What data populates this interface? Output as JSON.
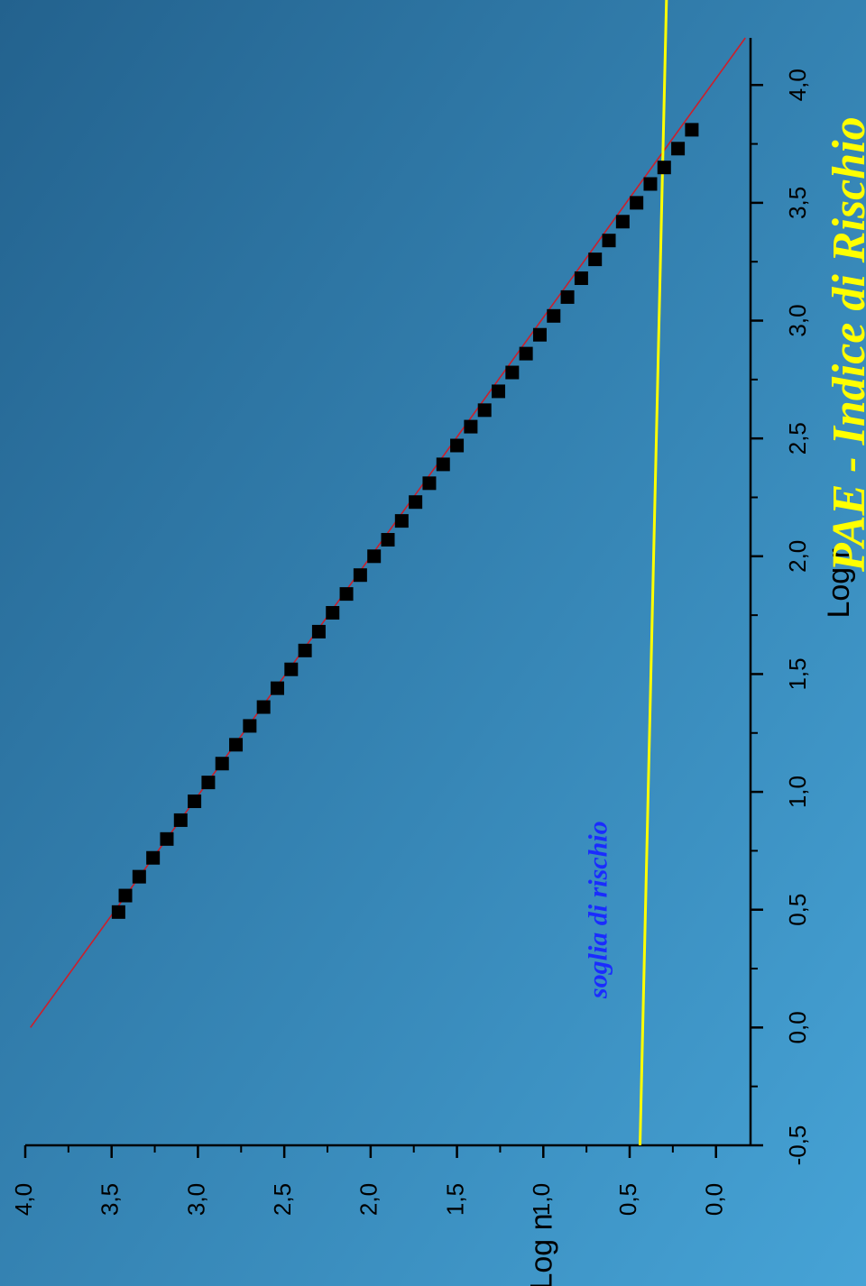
{
  "colors": {
    "background_start": "#23628e",
    "background_end": "#46a3d6",
    "title": "#ffff00",
    "annotation": "#1a2cff",
    "threshold_line": "#ffff00",
    "fit_line": "#cc1f2b",
    "markers": "#000000",
    "axis": "#000000"
  },
  "chart_data": {
    "type": "scatter",
    "orientation": "rotated 90 degrees clockwise",
    "title": "PAE - Indice di Rischio",
    "xlabel": "Log r",
    "ylabel": "Log n",
    "xlim": [
      -0.5,
      4.2
    ],
    "ylim": [
      -0.2,
      4.0
    ],
    "x_ticks": [
      "-0,5",
      "0,0",
      "0,5",
      "1,0",
      "1,5",
      "2,0",
      "2,5",
      "3,0",
      "3,5",
      "4,0"
    ],
    "x_tick_values": [
      -0.5,
      0.0,
      0.5,
      1.0,
      1.5,
      2.0,
      2.5,
      3.0,
      3.5,
      4.0
    ],
    "y_ticks": [
      "4,0",
      "3,5",
      "3,0",
      "2,5",
      "2,0",
      "1,5",
      "1,0",
      "0,5",
      "0,0"
    ],
    "y_tick_values": [
      4.0,
      3.5,
      3.0,
      2.5,
      2.0,
      1.5,
      1.0,
      0.5,
      0.0
    ],
    "grid": false,
    "series": [
      {
        "type": "scatter",
        "marker": "square",
        "x": [
          0.49,
          0.56,
          0.64,
          0.72,
          0.8,
          0.88,
          0.96,
          1.04,
          1.12,
          1.2,
          1.28,
          1.36,
          1.44,
          1.52,
          1.6,
          1.68,
          1.76,
          1.84,
          1.92,
          2.0,
          2.07,
          2.15,
          2.23,
          2.31,
          2.39,
          2.47,
          2.55,
          2.62,
          2.7,
          2.78,
          2.86,
          2.94,
          3.02,
          3.1,
          3.18,
          3.26,
          3.34,
          3.42,
          3.5,
          3.58,
          3.65,
          3.73,
          3.81
        ],
        "y": [
          3.46,
          3.42,
          3.34,
          3.26,
          3.18,
          3.1,
          3.02,
          2.94,
          2.86,
          2.78,
          2.7,
          2.62,
          2.54,
          2.46,
          2.38,
          2.3,
          2.22,
          2.14,
          2.06,
          1.98,
          1.9,
          1.82,
          1.74,
          1.66,
          1.58,
          1.5,
          1.42,
          1.34,
          1.26,
          1.18,
          1.1,
          1.02,
          0.94,
          0.86,
          0.78,
          0.7,
          0.62,
          0.54,
          0.46,
          0.38,
          0.3,
          0.22,
          0.14
        ]
      },
      {
        "type": "line",
        "x": [
          0.0,
          4.2
        ],
        "y": [
          3.97,
          -0.17
        ]
      },
      {
        "type": "line",
        "x": [
          -0.5,
          4.2
        ],
        "y": [
          0.44,
          0.36
        ]
      }
    ],
    "annotations": [
      {
        "text": "soglia di rischio",
        "x": 0.5,
        "y": 0.69
      }
    ]
  }
}
